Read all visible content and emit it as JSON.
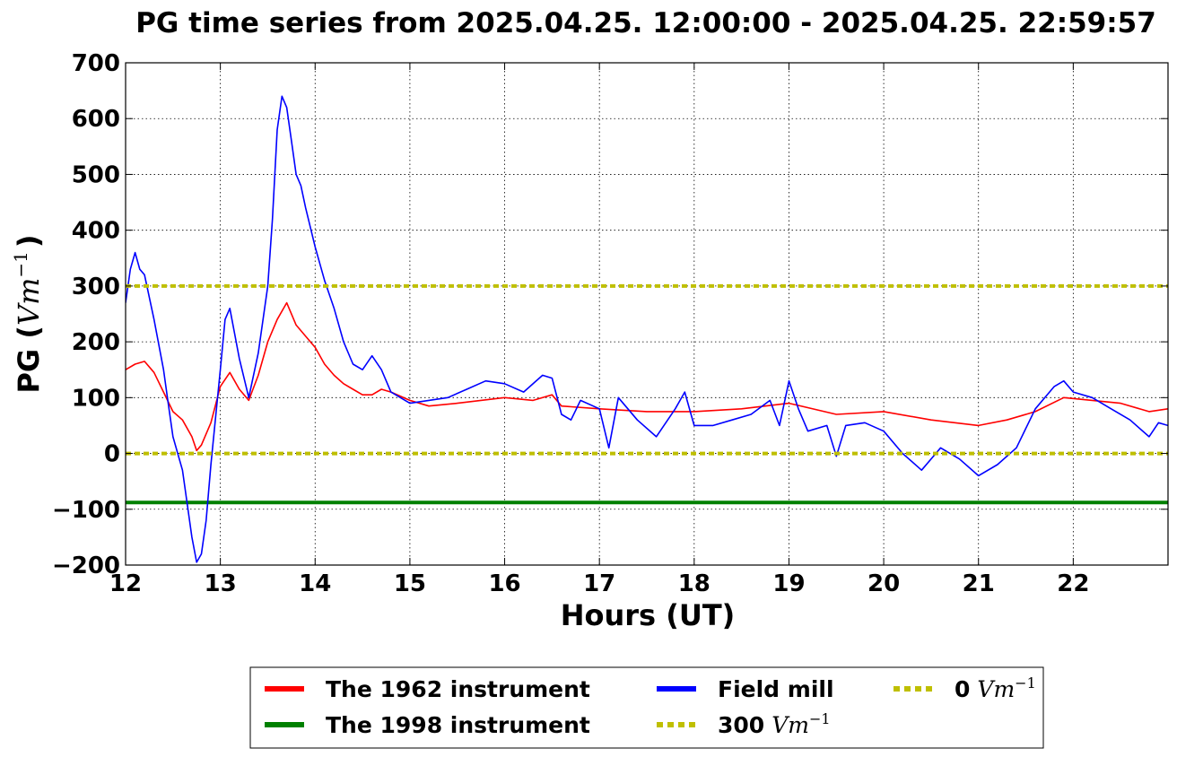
{
  "chart_data": {
    "type": "line",
    "title": "PG time series from 2025.04.25. 12:00:00 - 2025.04.25. 22:59:57",
    "xlabel": "Hours (UT)",
    "ylabel": {
      "prefix": "PG (",
      "math": "Vm",
      "sup": "−1",
      "suffix": ")"
    },
    "xlim": [
      12,
      23
    ],
    "ylim": [
      -200,
      700
    ],
    "xticks": [
      12,
      13,
      14,
      15,
      16,
      17,
      18,
      19,
      20,
      21,
      22
    ],
    "yticks": [
      -200,
      -100,
      0,
      100,
      200,
      300,
      400,
      500,
      600,
      700
    ],
    "grid": true,
    "legend_position": "below plot",
    "series": [
      {
        "name": "The 1962 instrument",
        "color": "#ff0000",
        "x": [
          12.0,
          12.1,
          12.2,
          12.3,
          12.4,
          12.5,
          12.6,
          12.7,
          12.75,
          12.8,
          12.9,
          13.0,
          13.1,
          13.2,
          13.3,
          13.4,
          13.5,
          13.6,
          13.7,
          13.8,
          13.9,
          14.0,
          14.1,
          14.2,
          14.3,
          14.4,
          14.5,
          14.6,
          14.7,
          14.8,
          15.0,
          15.2,
          15.5,
          16.0,
          16.3,
          16.5,
          16.6,
          17.0,
          17.5,
          18.0,
          18.5,
          19.0,
          19.5,
          20.0,
          20.5,
          21.0,
          21.3,
          21.6,
          21.9,
          22.2,
          22.5,
          22.8,
          23.0
        ],
        "values": [
          150,
          160,
          165,
          145,
          110,
          75,
          60,
          30,
          5,
          15,
          55,
          120,
          145,
          115,
          95,
          140,
          200,
          240,
          270,
          230,
          210,
          190,
          160,
          140,
          125,
          115,
          105,
          105,
          115,
          110,
          95,
          85,
          90,
          100,
          95,
          105,
          85,
          80,
          75,
          75,
          80,
          90,
          70,
          75,
          60,
          50,
          60,
          75,
          100,
          95,
          90,
          75,
          80
        ]
      },
      {
        "name": "The 1998 instrument",
        "color": "#008000",
        "x": [
          12,
          23
        ],
        "values": [
          -88,
          -88
        ]
      },
      {
        "name": "Field mill",
        "color": "#0000ff",
        "x": [
          12.0,
          12.05,
          12.1,
          12.15,
          12.2,
          12.3,
          12.4,
          12.45,
          12.5,
          12.6,
          12.7,
          12.75,
          12.8,
          12.85,
          12.9,
          13.0,
          13.05,
          13.1,
          13.2,
          13.3,
          13.4,
          13.5,
          13.55,
          13.6,
          13.65,
          13.7,
          13.75,
          13.8,
          13.85,
          13.9,
          14.0,
          14.1,
          14.2,
          14.3,
          14.4,
          14.5,
          14.6,
          14.7,
          14.8,
          15.0,
          15.2,
          15.4,
          15.6,
          15.8,
          16.0,
          16.2,
          16.4,
          16.5,
          16.6,
          16.7,
          16.8,
          17.0,
          17.1,
          17.2,
          17.4,
          17.6,
          17.8,
          17.9,
          18.0,
          18.2,
          18.4,
          18.6,
          18.8,
          18.9,
          19.0,
          19.1,
          19.2,
          19.4,
          19.5,
          19.6,
          19.8,
          20.0,
          20.2,
          20.4,
          20.6,
          20.8,
          21.0,
          21.2,
          21.4,
          21.6,
          21.8,
          21.9,
          22.0,
          22.2,
          22.4,
          22.6,
          22.8,
          22.9,
          23.0
        ],
        "values": [
          270,
          330,
          360,
          330,
          320,
          240,
          150,
          90,
          30,
          -30,
          -150,
          -195,
          -180,
          -120,
          -20,
          150,
          240,
          260,
          170,
          100,
          180,
          300,
          420,
          580,
          640,
          620,
          560,
          500,
          480,
          440,
          370,
          310,
          260,
          200,
          160,
          150,
          175,
          150,
          110,
          90,
          95,
          100,
          115,
          130,
          125,
          110,
          140,
          135,
          70,
          60,
          95,
          80,
          10,
          100,
          60,
          30,
          80,
          110,
          50,
          50,
          60,
          70,
          95,
          50,
          130,
          80,
          40,
          50,
          -5,
          50,
          55,
          40,
          0,
          -30,
          10,
          -10,
          -40,
          -20,
          10,
          80,
          120,
          130,
          110,
          100,
          80,
          60,
          30,
          55,
          50
        ]
      },
      {
        "name": "300",
        "legend_math": "Vm",
        "legend_sup": "−1",
        "color": "#bfbf00",
        "dashed": true,
        "x": [
          12,
          23
        ],
        "values": [
          300,
          300
        ]
      },
      {
        "name": "0",
        "legend_math": "Vm",
        "legend_sup": "−1",
        "color": "#bfbf00",
        "dashed": true,
        "x": [
          12,
          23
        ],
        "values": [
          0,
          0
        ]
      }
    ]
  }
}
